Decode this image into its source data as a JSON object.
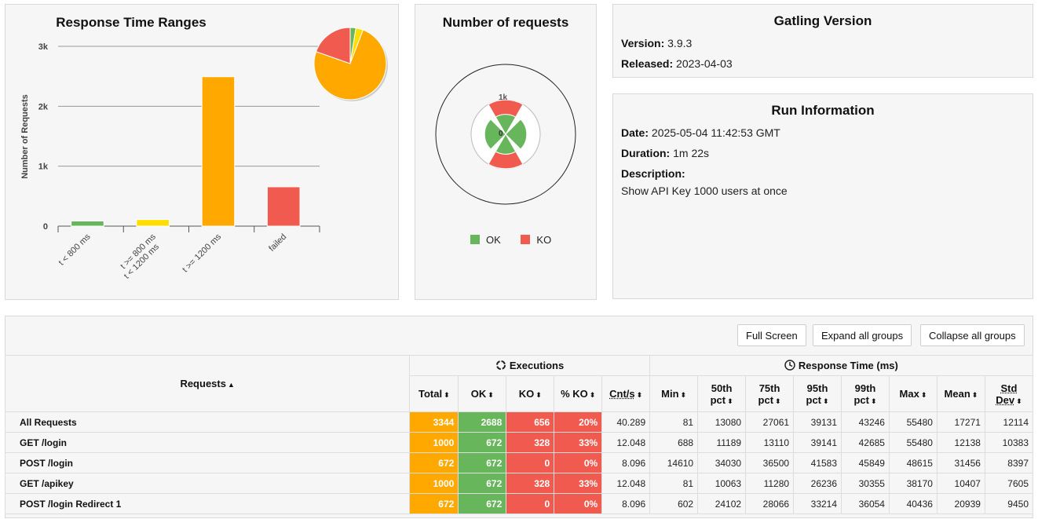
{
  "range_panel": {
    "title": "Response Time Ranges",
    "ylabel": "Number of Requests",
    "y_ticks": [
      "3k",
      "2k",
      "1k",
      "0"
    ]
  },
  "chart_data": [
    {
      "type": "bar",
      "title": "Response Time Ranges",
      "xlabel": "",
      "ylabel": "Number of Requests",
      "ylim": [
        0,
        3000
      ],
      "categories": [
        "t < 800 ms",
        "t >= 800 ms t < 1200 ms",
        "t >= 1200 ms",
        "failed"
      ],
      "values": [
        85,
        110,
        2493,
        656
      ],
      "colors": [
        "#68b65c",
        "#ffdd00",
        "#ffa900",
        "#f15b4f"
      ],
      "inset_pie": {
        "values": [
          85,
          110,
          2493,
          656
        ],
        "colors": [
          "#68b65c",
          "#ffdd00",
          "#ffa900",
          "#f15b4f"
        ]
      }
    },
    {
      "type": "pie",
      "title": "Number of requests",
      "scale_label": "1k",
      "zero_label": "0",
      "legend": [
        {
          "name": "OK",
          "color": "#68b65c"
        },
        {
          "name": "KO",
          "color": "#f15b4f"
        }
      ]
    }
  ],
  "requests_panel": {
    "title": "Number of requests",
    "legend_ok": "OK",
    "legend_ko": "KO"
  },
  "gatling": {
    "title": "Gatling Version",
    "version_label": "Version:",
    "version": "3.9.3",
    "released_label": "Released:",
    "released": "2023-04-03"
  },
  "run": {
    "title": "Run Information",
    "date_label": "Date:",
    "date": "2025-05-04 11:42:53 GMT",
    "duration_label": "Duration:",
    "duration": "1m 22s",
    "description_label": "Description:",
    "description": "Show API Key 1000 users at once"
  },
  "buttons": {
    "full_screen": "Full Screen",
    "expand": "Expand all groups",
    "collapse": "Collapse all groups"
  },
  "table": {
    "requests_header": "Requests",
    "executions_header": "Executions",
    "response_header": "Response Time (ms)",
    "columns": [
      "Total",
      "OK",
      "KO",
      "% KO",
      "Cnt/s",
      "Min",
      "50th pct",
      "75th pct",
      "95th pct",
      "99th pct",
      "Max",
      "Mean",
      "Std Dev"
    ],
    "rows": [
      [
        "All Requests",
        "3344",
        "2688",
        "656",
        "20%",
        "40.289",
        "81",
        "13080",
        "27061",
        "39131",
        "43246",
        "55480",
        "17271",
        "12114"
      ],
      [
        "GET /login",
        "1000",
        "672",
        "328",
        "33%",
        "12.048",
        "688",
        "11189",
        "13110",
        "39141",
        "42685",
        "55480",
        "12138",
        "10383"
      ],
      [
        "POST /login",
        "672",
        "672",
        "0",
        "0%",
        "8.096",
        "14610",
        "34030",
        "36500",
        "41583",
        "45849",
        "48615",
        "31456",
        "8397"
      ],
      [
        "GET /apikey",
        "1000",
        "672",
        "328",
        "33%",
        "12.048",
        "81",
        "10063",
        "11280",
        "26236",
        "30355",
        "38170",
        "10407",
        "7605"
      ],
      [
        "POST /login Redirect 1",
        "672",
        "672",
        "0",
        "0%",
        "8.096",
        "602",
        "24102",
        "28066",
        "33214",
        "36054",
        "40436",
        "20939",
        "9450"
      ]
    ]
  }
}
